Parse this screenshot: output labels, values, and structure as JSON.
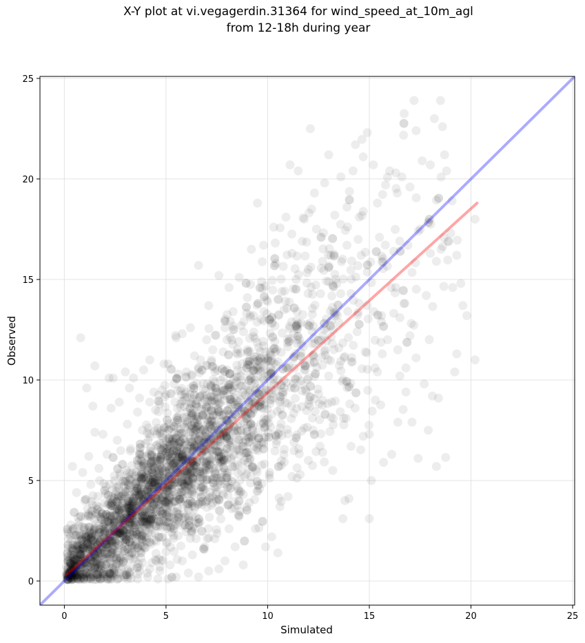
{
  "chart_data": {
    "type": "scatter",
    "title_lines": [
      "X-Y plot at vi.vegagerdin.31364 for wind_speed_at_10m_agl",
      "from 12-18h during year"
    ],
    "xlabel": "Simulated",
    "ylabel": "Observed",
    "xlim": [
      -1.2,
      25.1
    ],
    "ylim": [
      -1.2,
      25.1
    ],
    "xticks": [
      0,
      5,
      10,
      15,
      20,
      25
    ],
    "yticks": [
      0,
      5,
      10,
      15,
      20,
      25
    ],
    "grid": true,
    "point_color": "#000000",
    "point_alpha": 0.07,
    "identity_line": {
      "from": [
        -1.2,
        -1.2
      ],
      "to": [
        25.1,
        25.1
      ],
      "color": "#0000ff",
      "alpha": 0.33
    },
    "fit_line": {
      "from": [
        0.1,
        0.3
      ],
      "to": [
        20.3,
        18.8
      ],
      "color": "#ff0000",
      "alpha": 0.35
    },
    "point_summary": {
      "approx_count": 9000,
      "note_shape": "dense cloud along diagonal"
    },
    "points": [
      [
        0.8,
        12.1
      ],
      [
        1.1,
        9.6
      ],
      [
        1.4,
        8.7
      ],
      [
        1.5,
        10.7
      ],
      [
        2.2,
        10.1
      ],
      [
        2.4,
        10.1
      ],
      [
        3.0,
        10.4
      ],
      [
        3.4,
        10.1
      ],
      [
        3.9,
        10.5
      ],
      [
        4.2,
        11.0
      ],
      [
        4.9,
        10.8
      ],
      [
        5.1,
        10.8
      ],
      [
        5.5,
        12.1
      ],
      [
        5.8,
        12.3
      ],
      [
        6.2,
        12.6
      ],
      [
        6.6,
        15.7
      ],
      [
        7.1,
        13.7
      ],
      [
        7.6,
        15.2
      ],
      [
        8.1,
        14.6
      ],
      [
        8.6,
        15.1
      ],
      [
        9.2,
        16.5
      ],
      [
        9.5,
        18.8
      ],
      [
        9.8,
        16.7
      ],
      [
        10.3,
        17.6
      ],
      [
        10.9,
        18.1
      ],
      [
        11.1,
        20.7
      ],
      [
        11.5,
        20.4
      ],
      [
        11.8,
        18.0
      ],
      [
        12.1,
        22.5
      ],
      [
        12.3,
        19.3
      ],
      [
        12.8,
        19.8
      ],
      [
        13.0,
        21.2
      ],
      [
        13.3,
        18.2
      ],
      [
        13.6,
        20.1
      ],
      [
        13.9,
        18.6
      ],
      [
        14.2,
        20.4
      ],
      [
        14.5,
        18.1
      ],
      [
        14.7,
        21.1
      ],
      [
        14.9,
        22.3
      ],
      [
        15.2,
        20.7
      ],
      [
        15.4,
        18.8
      ],
      [
        15.8,
        19.7
      ],
      [
        16.0,
        20.4
      ],
      [
        16.3,
        20.3
      ],
      [
        16.6,
        20.1
      ],
      [
        17.0,
        19.6
      ],
      [
        17.2,
        23.9
      ],
      [
        17.3,
        22.4
      ],
      [
        17.6,
        20.9
      ],
      [
        18.0,
        20.7
      ],
      [
        18.2,
        23.0
      ],
      [
        18.5,
        23.9
      ],
      [
        18.6,
        22.6
      ],
      [
        18.7,
        21.2
      ],
      [
        18.8,
        20.4
      ],
      [
        19.0,
        17.3
      ],
      [
        19.3,
        16.2
      ],
      [
        19.5,
        14.8
      ],
      [
        19.1,
        14.6
      ],
      [
        19.8,
        13.2
      ],
      [
        20.2,
        18.0
      ],
      [
        20.2,
        11.0
      ],
      [
        19.6,
        13.7
      ],
      [
        19.3,
        11.3
      ],
      [
        19.2,
        10.4
      ],
      [
        18.4,
        9.1
      ],
      [
        18.1,
        9.2
      ],
      [
        17.9,
        7.5
      ],
      [
        17.7,
        9.8
      ],
      [
        18.3,
        5.7
      ],
      [
        17.1,
        7.9
      ],
      [
        17.4,
        6.1
      ],
      [
        16.8,
        9.4
      ],
      [
        16.5,
        10.2
      ],
      [
        16.1,
        6.3
      ],
      [
        15.7,
        5.9
      ],
      [
        15.3,
        9.0
      ],
      [
        15.0,
        7.3
      ],
      [
        14.7,
        7.2
      ],
      [
        14.3,
        8.6
      ],
      [
        14.1,
        6.7
      ],
      [
        14.0,
        4.1
      ],
      [
        13.8,
        4.0
      ],
      [
        13.7,
        3.1
      ],
      [
        15.1,
        5.0
      ],
      [
        15.0,
        3.1
      ],
      [
        13.2,
        5.5
      ],
      [
        12.7,
        6.4
      ],
      [
        12.0,
        6.0
      ],
      [
        11.6,
        5.3
      ],
      [
        11.2,
        5.2
      ],
      [
        11.0,
        4.2
      ],
      [
        10.6,
        3.7
      ],
      [
        10.2,
        2.2
      ],
      [
        9.9,
        1.7
      ],
      [
        10.5,
        1.4
      ],
      [
        9.4,
        2.6
      ],
      [
        8.8,
        0.8
      ],
      [
        8.4,
        1.7
      ],
      [
        7.9,
        1.0
      ],
      [
        7.6,
        0.6
      ],
      [
        7.1,
        0.5
      ],
      [
        6.6,
        0.2
      ],
      [
        6.1,
        0.4
      ],
      [
        5.5,
        0.2
      ],
      [
        5.1,
        0.1
      ],
      [
        4.6,
        0.1
      ],
      [
        4.1,
        0.2
      ],
      [
        3.6,
        0.1
      ],
      [
        3.1,
        0.1
      ],
      [
        2.6,
        0.1
      ],
      [
        2.1,
        0.1
      ],
      [
        1.6,
        0.1
      ],
      [
        1.1,
        0.2
      ],
      [
        0.6,
        0.3
      ],
      [
        0.3,
        0.5
      ],
      [
        0.1,
        0.7
      ],
      [
        0.2,
        2.1
      ],
      [
        0.4,
        5.7
      ],
      [
        0.6,
        4.4
      ],
      [
        0.9,
        5.4
      ],
      [
        1.2,
        6.2
      ],
      [
        1.5,
        7.4
      ],
      [
        1.9,
        7.3
      ],
      [
        2.3,
        8.6
      ],
      [
        2.7,
        8.9
      ],
      [
        3.2,
        9.6
      ],
      [
        3.7,
        9.1
      ],
      [
        4.4,
        9.4
      ],
      [
        5.6,
        10.3
      ],
      [
        6.4,
        11.2
      ],
      [
        7.0,
        12.0
      ],
      [
        7.9,
        12.6
      ],
      [
        8.3,
        13.4
      ],
      [
        9.0,
        14.1
      ],
      [
        9.7,
        14.9
      ],
      [
        10.4,
        15.8
      ],
      [
        11.2,
        16.3
      ],
      [
        11.7,
        16.9
      ],
      [
        12.4,
        17.5
      ],
      [
        13.1,
        16.2
      ],
      [
        13.9,
        16.7
      ],
      [
        14.6,
        16.2
      ],
      [
        15.5,
        17.1
      ],
      [
        16.2,
        16.4
      ],
      [
        16.9,
        16.7
      ],
      [
        17.5,
        17.5
      ],
      [
        18.0,
        16.3
      ],
      [
        18.3,
        15.9
      ],
      [
        17.8,
        14.2
      ],
      [
        16.7,
        13.8
      ],
      [
        16.3,
        14.6
      ],
      [
        15.6,
        13.2
      ],
      [
        15.9,
        12.0
      ],
      [
        16.4,
        11.5
      ],
      [
        17.0,
        12.2
      ],
      [
        17.3,
        11.1
      ],
      [
        16.8,
        10.6
      ],
      [
        15.4,
        10.4
      ],
      [
        14.8,
        11.4
      ],
      [
        14.4,
        12.4
      ],
      [
        13.5,
        11.6
      ],
      [
        13.0,
        10.2
      ],
      [
        12.5,
        9.3
      ],
      [
        12.2,
        8.1
      ],
      [
        11.8,
        7.6
      ],
      [
        11.3,
        6.9
      ],
      [
        10.8,
        6.3
      ],
      [
        10.1,
        5.4
      ],
      [
        9.6,
        4.6
      ],
      [
        9.1,
        3.9
      ],
      [
        8.6,
        3.2
      ],
      [
        8.1,
        2.6
      ],
      [
        7.4,
        2.1
      ],
      [
        6.9,
        1.7
      ],
      [
        6.3,
        1.3
      ],
      [
        5.8,
        1.0
      ],
      [
        5.2,
        0.8
      ],
      [
        4.7,
        0.7
      ],
      [
        4.2,
        0.6
      ],
      [
        3.7,
        0.5
      ],
      [
        3.2,
        0.4
      ],
      [
        2.7,
        0.4
      ],
      [
        2.2,
        0.4
      ],
      [
        1.7,
        0.5
      ],
      [
        1.3,
        0.7
      ],
      [
        0.9,
        1.0
      ],
      [
        0.7,
        1.5
      ],
      [
        0.6,
        2.3
      ],
      [
        0.8,
        3.2
      ],
      [
        1.0,
        4.0
      ],
      [
        1.3,
        4.8
      ],
      [
        1.7,
        5.6
      ],
      [
        2.1,
        6.3
      ],
      [
        2.6,
        7.0
      ],
      [
        3.1,
        7.8
      ],
      [
        3.6,
        8.4
      ],
      [
        4.2,
        8.9
      ],
      [
        4.8,
        9.5
      ],
      [
        5.4,
        9.8
      ],
      [
        6.0,
        10.4
      ],
      [
        6.7,
        11.0
      ],
      [
        7.3,
        11.5
      ],
      [
        8.0,
        12.0
      ],
      [
        8.7,
        12.7
      ],
      [
        9.3,
        13.2
      ],
      [
        10.0,
        13.9
      ],
      [
        10.7,
        14.4
      ],
      [
        11.4,
        15.0
      ],
      [
        12.0,
        15.5
      ],
      [
        12.7,
        15.9
      ],
      [
        13.4,
        14.8
      ],
      [
        14.1,
        14.3
      ],
      [
        14.9,
        13.7
      ],
      [
        15.6,
        12.9
      ],
      [
        13.3,
        13.2
      ],
      [
        12.8,
        12.5
      ],
      [
        12.2,
        11.8
      ],
      [
        11.6,
        11.2
      ],
      [
        11.0,
        10.6
      ],
      [
        10.5,
        10.0
      ],
      [
        9.9,
        9.5
      ],
      [
        9.3,
        8.9
      ],
      [
        8.7,
        8.3
      ],
      [
        8.1,
        7.7
      ],
      [
        7.5,
        7.1
      ],
      [
        6.9,
        6.5
      ],
      [
        6.3,
        5.9
      ],
      [
        5.7,
        5.3
      ],
      [
        5.1,
        4.7
      ],
      [
        4.5,
        4.1
      ],
      [
        3.9,
        3.5
      ],
      [
        3.3,
        2.9
      ],
      [
        2.7,
        2.4
      ],
      [
        2.1,
        1.8
      ],
      [
        1.5,
        1.3
      ],
      [
        1.0,
        0.9
      ],
      [
        0.5,
        0.5
      ]
    ]
  }
}
